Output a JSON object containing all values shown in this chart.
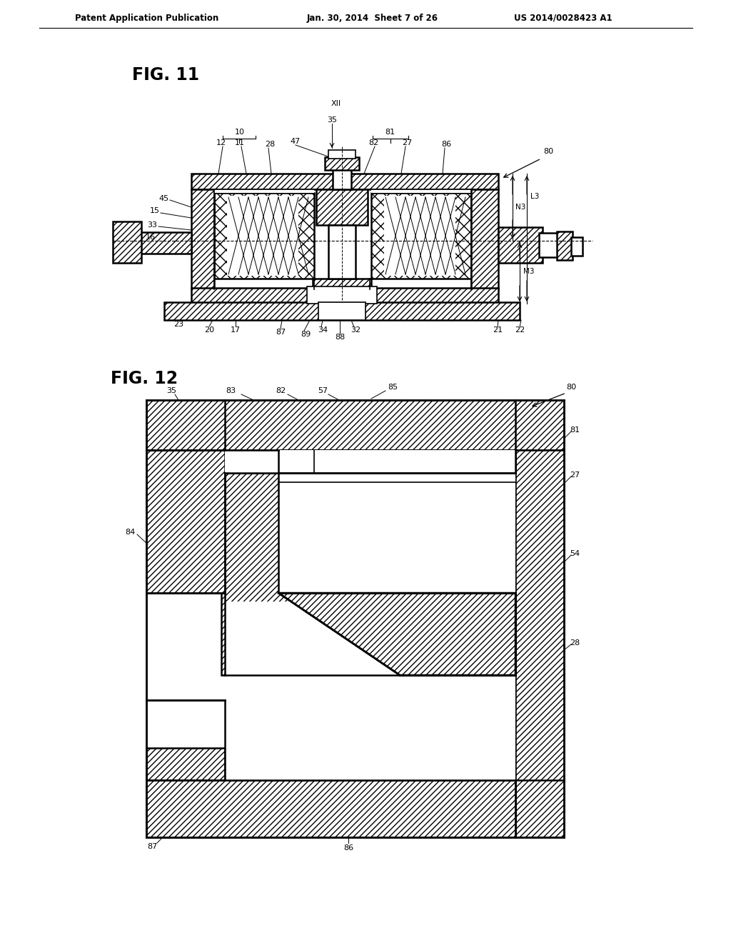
{
  "bg_color": "#ffffff",
  "header_left": "Patent Application Publication",
  "header_center": "Jan. 30, 2014  Sheet 7 of 26",
  "header_right": "US 2014/0028423 A1",
  "fig11_label": "FIG. 11",
  "fig12_label": "FIG. 12",
  "line_color": "#000000"
}
